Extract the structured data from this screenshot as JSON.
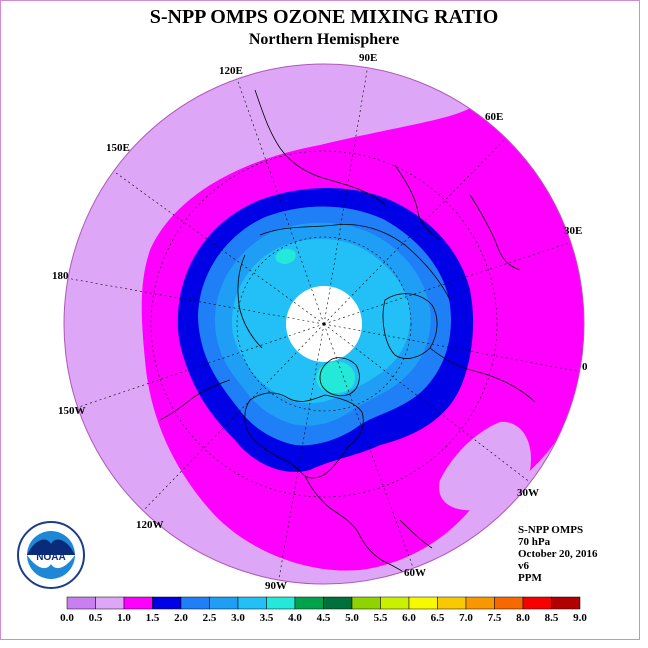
{
  "title": "S-NPP OMPS OZONE MIXING RATIO",
  "subtitle": "Northern Hemisphere",
  "longitude_labels": [
    "90E",
    "60E",
    "30E",
    "0",
    "30W",
    "60W",
    "90W",
    "120W",
    "150W",
    "180",
    "150E",
    "120E"
  ],
  "info": {
    "instrument": "S-NPP OMPS",
    "level": "70 hPa",
    "date": "October 20, 2016",
    "version": "v6",
    "units": "PPM"
  },
  "logo_text": "NOAA",
  "colorbar": {
    "ticks": [
      "0.0",
      "0.5",
      "1.0",
      "1.5",
      "2.0",
      "2.5",
      "3.0",
      "3.5",
      "4.0",
      "4.5",
      "5.0",
      "5.5",
      "6.0",
      "6.5",
      "7.0",
      "7.5",
      "8.0",
      "8.5",
      "9.0"
    ],
    "colors": [
      "#c87ff0",
      "#dda6f6",
      "#ff00ff",
      "#0000e6",
      "#1f7ff7",
      "#1e9ff5",
      "#22c0f7",
      "#24e8d8",
      "#00a34a",
      "#00703c",
      "#8fd400",
      "#c8f000",
      "#f8f800",
      "#f8c800",
      "#f89800",
      "#f86800",
      "#f80000",
      "#b00000"
    ]
  },
  "contour_colors": {
    "outer": "#dda6f6",
    "band_1_0": "#ff00ff",
    "band_1_5": "#0000e6",
    "band_2_0": "#1f7ff7",
    "band_2_5": "#1e9ff5",
    "band_3_0": "#22c0f7",
    "band_3_5": "#24e8d8",
    "no_data": "#ffffff"
  }
}
